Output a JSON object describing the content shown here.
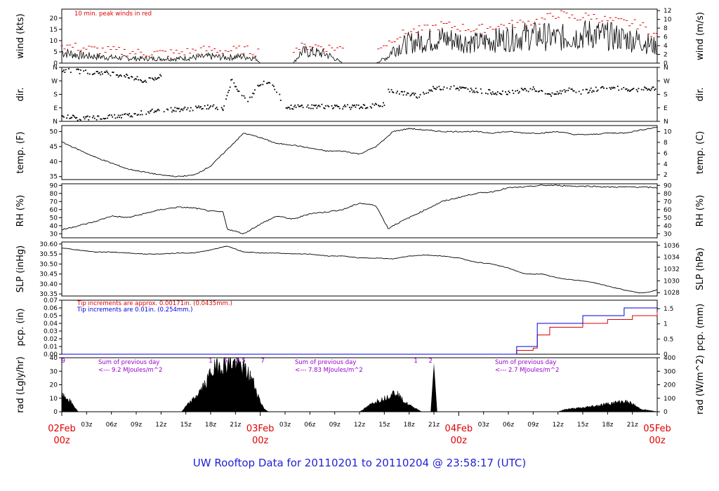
{
  "footer_title": "UW Rooftop Data for 20110201  to  20110204 @ 23:58:17  (UTC)",
  "colors": {
    "peak": "#e00000",
    "pcp_fine": "#e00000",
    "pcp_coarse": "#0000e0",
    "rad_note": "#9900cc",
    "date_label": "#e00000",
    "axis": "#000000"
  },
  "time_axis": {
    "range_hours": [
      0,
      72
    ],
    "hour_ticks": [
      "03z",
      "06z",
      "09z",
      "12z",
      "15z",
      "18z",
      "21z"
    ],
    "day_labels": [
      {
        "date": "02Feb",
        "hour": "00z"
      },
      {
        "date": "03Feb",
        "hour": "00z"
      },
      {
        "date": "04Feb",
        "hour": "00z"
      },
      {
        "date": "05Feb",
        "hour": "00z"
      }
    ]
  },
  "chart_data": [
    {
      "type": "line",
      "id": "wind",
      "ylabel_left": "wind (kts)",
      "ylabel_right": "wind (m/s)",
      "ylim": [
        0,
        24
      ],
      "ticks_left": [
        0,
        5,
        10,
        15,
        20
      ],
      "ticks_right": [
        0,
        2,
        4,
        6,
        8,
        10,
        12
      ],
      "right_scale": "m/s",
      "annotation": "10 min. peak winds in red",
      "series": [
        {
          "name": "mean",
          "x": [
            0,
            2,
            4,
            6,
            8,
            10,
            12,
            14,
            16,
            18,
            20,
            22,
            23.5,
            24,
            28,
            29,
            30,
            32,
            34,
            36,
            38,
            39.5,
            40,
            42,
            44,
            46,
            48,
            50,
            52,
            54,
            56,
            58,
            60,
            62,
            64,
            66,
            68,
            70,
            72
          ],
          "y": [
            5,
            3.5,
            3,
            2.5,
            2.2,
            2,
            2,
            2,
            2.5,
            3,
            2.5,
            3,
            2,
            0,
            0,
            5,
            5,
            4,
            0,
            0,
            0,
            3,
            6,
            9,
            10,
            11,
            10,
            9,
            10,
            11,
            12,
            12,
            11,
            12,
            13,
            12,
            11,
            10,
            7
          ]
        },
        {
          "name": "peak",
          "x": [
            0,
            2,
            4,
            6,
            8,
            10,
            12,
            14,
            16,
            18,
            20,
            22,
            23.5,
            29,
            30,
            32,
            36,
            38,
            39.5,
            40,
            42,
            44,
            46,
            48,
            50,
            52,
            54,
            56,
            58,
            60,
            62,
            64,
            66,
            68,
            70,
            72
          ],
          "y": [
            8,
            7,
            6,
            5.5,
            5,
            4.5,
            4.5,
            4.5,
            5.5,
            6,
            5.5,
            6,
            5,
            7,
            8,
            7,
            6,
            7,
            9,
            11,
            14,
            15,
            17,
            16,
            15,
            16,
            17,
            18,
            19,
            22,
            20,
            21,
            19,
            18,
            17,
            12
          ]
        }
      ]
    },
    {
      "type": "scatter",
      "id": "dir",
      "ylabel_left": "dir.",
      "ylabel_right": "dir.",
      "ylim": [
        0,
        360
      ],
      "tick_labels": [
        "N",
        "E",
        "S",
        "W",
        "N"
      ],
      "tick_values": [
        0,
        90,
        180,
        270,
        360
      ],
      "segments": [
        {
          "x": [
            0,
            2,
            4,
            6,
            8,
            10,
            12,
            14,
            16,
            18,
            19.5
          ],
          "y": [
            45,
            20,
            25,
            30,
            40,
            60,
            75,
            80,
            85,
            100,
            90
          ]
        },
        {
          "x": [
            0,
            3,
            6,
            8,
            10,
            12
          ],
          "y": [
            340,
            330,
            320,
            300,
            270,
            300
          ]
        },
        {
          "x": [
            19.5,
            20.5,
            21.5,
            22.5,
            23.5,
            24.5,
            25.5,
            26.5
          ],
          "y": [
            80,
            270,
            200,
            130,
            220,
            270,
            250,
            150
          ]
        },
        {
          "x": [
            27,
            29,
            31,
            33,
            35,
            37,
            39
          ],
          "y": [
            90,
            100,
            100,
            100,
            95,
            100,
            110
          ]
        },
        {
          "x": [
            39.5,
            41,
            43,
            45,
            47,
            49,
            51,
            53,
            55,
            57,
            59,
            61,
            63,
            65,
            67,
            69,
            71,
            72
          ],
          "y": [
            210,
            190,
            170,
            220,
            225,
            215,
            200,
            190,
            200,
            220,
            170,
            210,
            195,
            220,
            220,
            210,
            215,
            215
          ]
        }
      ]
    },
    {
      "type": "line",
      "id": "temp",
      "ylabel_left": "temp. (F)",
      "ylabel_right": "temp. (C)",
      "ylim": [
        34,
        52
      ],
      "ticks_left": [
        35,
        40,
        45,
        50
      ],
      "ticks_right": [
        2,
        4,
        6,
        8,
        10
      ],
      "right_scale": "C",
      "series": [
        {
          "name": "temp",
          "x": [
            0,
            2,
            4,
            6,
            8,
            10,
            12,
            14,
            16,
            18,
            20,
            22,
            24,
            26,
            28,
            30,
            32,
            34,
            36,
            38,
            39.5,
            40,
            42,
            44,
            46,
            48,
            50,
            52,
            54,
            56,
            58,
            60,
            62,
            64,
            66,
            68,
            70,
            72
          ],
          "y": [
            46.5,
            44,
            41.5,
            39.5,
            37.5,
            36.5,
            35.5,
            35,
            35.5,
            38.5,
            44,
            49.5,
            48,
            46,
            45.5,
            44.5,
            43.5,
            43.5,
            42.5,
            45,
            48.5,
            50,
            51,
            50.5,
            50,
            50,
            50,
            49.5,
            50,
            49.5,
            49.5,
            50,
            49,
            49,
            49.5,
            49.5,
            50.5,
            51.5
          ]
        }
      ]
    },
    {
      "type": "line",
      "id": "rh",
      "ylabel_left": "RH (%)",
      "ylabel_right": "RH (%)",
      "ylim": [
        25,
        92
      ],
      "ticks": [
        30,
        40,
        50,
        60,
        70,
        80,
        90
      ],
      "series": [
        {
          "name": "rh",
          "x": [
            0,
            2,
            4,
            6,
            8,
            10,
            12,
            14,
            16,
            18,
            19.5,
            20,
            22,
            24,
            26,
            28,
            30,
            32,
            34,
            36,
            38,
            38.5,
            39.5,
            40,
            42,
            44,
            46,
            48,
            50,
            52,
            54,
            56,
            58,
            60,
            62,
            64,
            66,
            68,
            70,
            72
          ],
          "y": [
            35,
            40,
            45,
            52,
            50,
            55,
            60,
            63,
            62,
            58,
            57,
            36,
            30,
            42,
            52,
            48,
            55,
            57,
            60,
            68,
            65,
            55,
            36,
            40,
            50,
            60,
            70,
            75,
            80,
            82,
            87,
            88,
            90,
            90,
            89,
            89,
            88,
            88,
            88,
            87
          ]
        }
      ]
    },
    {
      "type": "line",
      "id": "slp",
      "ylabel_left": "SLP (inHg)",
      "ylabel_right": "SLP (hPa)",
      "ylim": [
        30.34,
        30.61
      ],
      "ticks_left": [
        30.35,
        30.4,
        30.45,
        30.5,
        30.55,
        30.6
      ],
      "ticks_right": [
        1028,
        1030,
        1032,
        1034,
        1036
      ],
      "right_scale": "hPa",
      "series": [
        {
          "name": "slp",
          "x": [
            0,
            2,
            4,
            6,
            8,
            10,
            12,
            14,
            16,
            18,
            20,
            22,
            24,
            26,
            28,
            30,
            32,
            34,
            36,
            38,
            40,
            42,
            44,
            46,
            48,
            50,
            52,
            54,
            56,
            58,
            60,
            62,
            64,
            66,
            68,
            70,
            71,
            72
          ],
          "y": [
            30.58,
            30.57,
            30.56,
            30.56,
            30.555,
            30.55,
            30.55,
            30.555,
            30.555,
            30.57,
            30.59,
            30.56,
            30.555,
            30.555,
            30.55,
            30.55,
            30.54,
            30.54,
            30.53,
            30.53,
            30.525,
            30.54,
            30.545,
            30.54,
            30.53,
            30.51,
            30.5,
            30.48,
            30.45,
            30.45,
            30.43,
            30.42,
            30.41,
            30.39,
            30.37,
            30.355,
            30.36,
            30.37
          ]
        }
      ]
    },
    {
      "type": "line",
      "id": "pcp",
      "ylabel_left": "pcp. (in)",
      "ylabel_right": "pcp. (mm)",
      "ylim": [
        0,
        0.07
      ],
      "ticks_left": [
        0,
        0.01,
        0.02,
        0.03,
        0.04,
        0.05,
        0.06,
        0.07
      ],
      "ticks_right": [
        0,
        0.5,
        1,
        1.5
      ],
      "right_scale": "mm",
      "notes": [
        "Tip increments are approx. 0.00171in. (0.0435mm.)",
        "Tip increments are 0.01in. (0.254mm.)"
      ],
      "series": [
        {
          "name": "fine",
          "x": [
            0,
            54,
            55,
            57,
            57.5,
            59,
            63,
            66,
            69,
            72
          ],
          "y": [
            0,
            0,
            0.005,
            0.008,
            0.025,
            0.035,
            0.04,
            0.045,
            0.05,
            0.055
          ]
        },
        {
          "name": "coarse",
          "x": [
            0,
            54,
            55,
            57,
            57.5,
            62,
            63,
            66,
            68,
            72
          ],
          "y": [
            0,
            0,
            0.01,
            0.01,
            0.04,
            0.04,
            0.05,
            0.05,
            0.06,
            0.06
          ]
        }
      ]
    },
    {
      "type": "area",
      "id": "rad",
      "ylabel_left": "rad (Lgly/hr)",
      "ylabel_right": "rad (W/m^2)",
      "ylim": [
        0,
        40
      ],
      "ticks_left": [
        0,
        10,
        20,
        30,
        40
      ],
      "ticks_right": [
        0,
        100,
        200,
        300,
        400
      ],
      "right_scale": "W/m^2",
      "top_labels": [
        "9",
        "1",
        "5",
        "2",
        "5",
        "7",
        "1",
        "2"
      ],
      "notes": [
        {
          "line1": "Sum of previous day",
          "line2": "<--- 9.2 MJoules/m^2"
        },
        {
          "line1": "Sum of previous day",
          "line2": "<--- 7.83 MJoules/m^2"
        },
        {
          "line1": "Sum of previous day",
          "line2": "<--- 2.7 MJoules/m^2"
        }
      ],
      "series": [
        {
          "name": "radiation",
          "x": [
            0,
            0.5,
            1,
            1.5,
            2,
            14.5,
            15,
            16,
            17,
            17.5,
            18,
            19,
            20,
            21,
            22,
            23,
            24,
            24.5,
            25,
            36,
            37,
            38,
            39,
            40,
            40.5,
            41,
            42,
            43,
            43.5,
            60,
            61,
            63,
            65,
            67,
            68,
            69,
            70,
            72
          ],
          "y": [
            12,
            11,
            8,
            4,
            0,
            0,
            4,
            10,
            18,
            22,
            30,
            35,
            37,
            37,
            33,
            25,
            8,
            2,
            0,
            0,
            4,
            8,
            10,
            14,
            15,
            10,
            5,
            2,
            0,
            0,
            2,
            3,
            5,
            7,
            8,
            6,
            2,
            0
          ]
        }
      ]
    }
  ]
}
